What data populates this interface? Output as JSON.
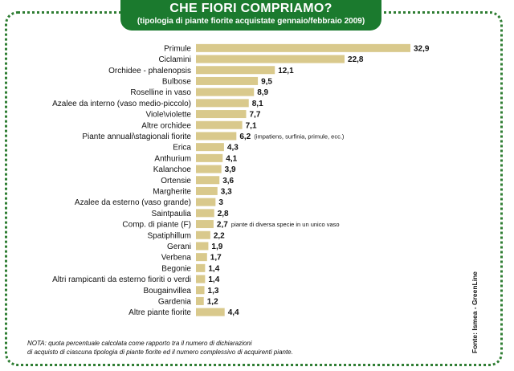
{
  "header": {
    "title": "CHE FIORI COMPRIAMO?",
    "subtitle": "(tipologia di piante fiorite acquistate gennaio/febbraio 2009)"
  },
  "note": {
    "line1": "NOTA: quota percentuale calcolata come rapporto tra il numero di dichiarazioni",
    "line2": "di acquisto di ciascuna tipologia di piante fiorite ed il numero complessivo di acquirenti piante."
  },
  "source": "Fonte: Ismea - GreenLine",
  "colors": {
    "bar": "#d9c98c",
    "frame": "#2e7d32",
    "header": "#1b7a2e"
  },
  "chart_data": {
    "type": "bar",
    "orientation": "horizontal",
    "categories": [
      "Primule",
      "Ciclamini",
      "Orchidee - phalenopsis",
      "Bulbose",
      "Roselline in vaso",
      "Azalee da interno (vaso medio-piccolo)",
      "Viole\\violette",
      "Altre orchidee",
      "Piante annuali\\stagionali fiorite",
      "Erica",
      "Anthurium",
      "Kalanchoe",
      "Ortensie",
      "Margherite",
      "Azalee da esterno (vaso grande)",
      "Saintpaulia",
      "Comp. di piante (F)",
      "Spatiphillum",
      "Gerani",
      "Verbena",
      "Begonie",
      "Altri rampicanti da esterno fioriti o verdi",
      "Bougainvillea",
      "Gardenia",
      "Altre piante fiorite"
    ],
    "values": [
      32.9,
      22.8,
      12.1,
      9.5,
      8.9,
      8.1,
      7.7,
      7.1,
      6.2,
      4.3,
      4.1,
      3.9,
      3.6,
      3.3,
      3,
      2.8,
      2.7,
      2.2,
      1.9,
      1.7,
      1.4,
      1.4,
      1.3,
      1.2,
      4.4
    ],
    "value_labels": [
      "32,9",
      "22,8",
      "12,1",
      "9,5",
      "8,9",
      "8,1",
      "7,7",
      "7,1",
      "6,2",
      "4,3",
      "4,1",
      "3,9",
      "3,6",
      "3,3",
      "3",
      "2,8",
      "2,7",
      "2,2",
      "1,9",
      "1,7",
      "1,4",
      "1,4",
      "1,3",
      "1,2",
      "4,4"
    ],
    "annotations": [
      {
        "index": 8,
        "text": "(impatiens, surfinia, primule, ecc.)"
      },
      {
        "index": 16,
        "text": "piante di diversa specie in un unico vaso"
      }
    ],
    "xlim": [
      0,
      32.9
    ],
    "grid": false,
    "legend": "none"
  }
}
